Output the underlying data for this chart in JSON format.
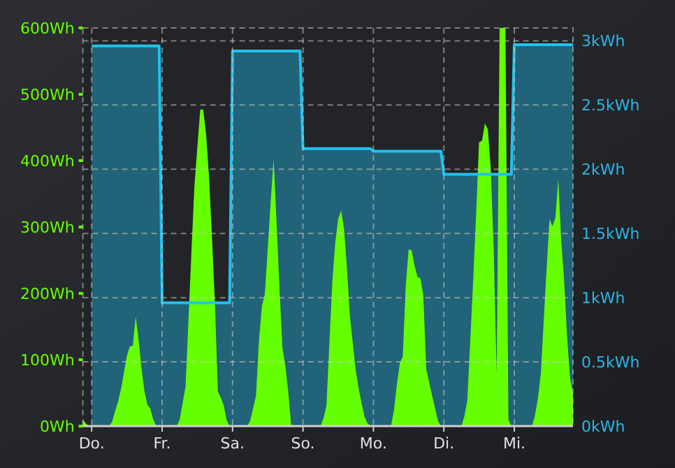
{
  "chart_data": {
    "type": "area",
    "categories": [
      null,
      null,
      null,
      "Do.",
      null,
      null,
      null,
      null,
      null,
      null,
      null,
      null,
      null,
      null,
      null,
      null,
      null,
      null,
      null,
      null,
      null,
      null,
      null,
      null,
      null,
      null,
      null,
      "Fr.",
      null,
      null,
      null,
      null,
      null,
      null,
      null,
      null,
      null,
      null,
      null,
      null,
      null,
      null,
      null,
      null,
      null,
      null,
      null,
      null,
      null,
      null,
      null,
      "Sa.",
      null,
      null,
      null,
      null,
      null,
      null,
      null,
      null,
      null,
      null,
      null,
      null,
      null,
      null,
      null,
      null,
      null,
      null,
      null,
      null,
      null,
      null,
      null,
      "So.",
      null,
      null,
      null,
      null,
      null,
      null,
      null,
      null,
      null,
      null,
      null,
      null,
      null,
      null,
      null,
      null,
      null,
      null,
      null,
      null,
      null,
      null,
      null,
      "Mo.",
      null,
      null,
      null,
      null,
      null,
      null,
      null,
      null,
      null,
      null,
      null,
      null,
      null,
      null,
      null,
      null,
      null,
      null,
      null,
      null,
      null,
      null,
      null,
      "Di.",
      null,
      null,
      null,
      null,
      null,
      null,
      null,
      null,
      null,
      null,
      null,
      null,
      null,
      null,
      null,
      null,
      null,
      null,
      null,
      null,
      null,
      null,
      null,
      "Mi.",
      null,
      null,
      null,
      null,
      null,
      null,
      null,
      null,
      null,
      null,
      null,
      null,
      null,
      null,
      null,
      null,
      null,
      null,
      null,
      null
    ],
    "ylim": [
      0,
      600
    ],
    "yticks": [
      {
        "value": 0,
        "label": "0Wh"
      },
      {
        "value": 100,
        "label": "100Wh"
      },
      {
        "value": 200,
        "label": "200Wh"
      },
      {
        "value": 300,
        "label": "300Wh"
      },
      {
        "value": 400,
        "label": "400Wh"
      },
      {
        "value": 500,
        "label": "500Wh"
      },
      {
        "value": 600,
        "label": "600Wh"
      }
    ],
    "y2lim": [
      0,
      3.1
    ],
    "y2ticks": [
      {
        "value": 0,
        "label": "0kWh"
      },
      {
        "value": 0.5,
        "label": "0.5kWh"
      },
      {
        "value": 1,
        "label": "1kWh"
      },
      {
        "value": 1.5,
        "label": "1.5kWh"
      },
      {
        "value": 2,
        "label": "2kWh"
      },
      {
        "value": 2.5,
        "label": "2.5kWh"
      },
      {
        "value": 3,
        "label": "3kWh"
      }
    ],
    "grid": true,
    "series": [
      {
        "type": "area",
        "axis": "y2",
        "color": "#1ec3f0",
        "values": [
          null,
          null,
          null,
          2.96,
          2.96,
          2.96,
          2.96,
          2.96,
          2.96,
          2.96,
          2.96,
          2.96,
          2.96,
          2.96,
          2.96,
          2.96,
          2.96,
          2.96,
          2.96,
          2.96,
          2.96,
          2.96,
          2.96,
          2.96,
          2.96,
          2.96,
          2.96,
          0.96,
          0.96,
          0.96,
          0.96,
          0.96,
          0.96,
          0.96,
          0.96,
          0.96,
          0.96,
          0.96,
          0.96,
          0.96,
          0.96,
          0.96,
          0.96,
          0.96,
          0.96,
          0.96,
          0.96,
          0.96,
          0.96,
          0.96,
          0.96,
          2.92,
          2.92,
          2.92,
          2.92,
          2.92,
          2.92,
          2.92,
          2.92,
          2.92,
          2.92,
          2.92,
          2.92,
          2.92,
          2.92,
          2.92,
          2.92,
          2.92,
          2.92,
          2.92,
          2.92,
          2.92,
          2.92,
          2.92,
          2.92,
          2.16,
          2.16,
          2.16,
          2.16,
          2.16,
          2.16,
          2.16,
          2.16,
          2.16,
          2.16,
          2.16,
          2.16,
          2.16,
          2.16,
          2.16,
          2.16,
          2.16,
          2.16,
          2.16,
          2.16,
          2.16,
          2.16,
          2.16,
          2.16,
          2.14,
          2.14,
          2.14,
          2.14,
          2.14,
          2.14,
          2.14,
          2.14,
          2.14,
          2.14,
          2.14,
          2.14,
          2.14,
          2.14,
          2.14,
          2.14,
          2.14,
          2.14,
          2.14,
          2.14,
          2.14,
          2.14,
          2.14,
          2.14,
          1.96,
          1.96,
          1.96,
          1.96,
          1.96,
          1.96,
          1.96,
          1.96,
          1.96,
          1.96,
          1.96,
          1.96,
          1.96,
          1.96,
          1.96,
          1.96,
          1.96,
          1.96,
          1.96,
          1.96,
          1.96,
          1.96,
          1.96,
          1.96,
          2.97,
          2.97,
          2.97,
          2.97,
          2.97,
          2.97,
          2.97,
          2.97,
          2.97,
          2.97,
          2.97,
          2.97,
          2.97,
          2.97,
          2.97,
          2.97,
          2.97,
          2.97,
          2.97,
          2.97,
          2.97
        ]
      },
      {
        "color": "#66ff00",
        "values": [
          10,
          4,
          0,
          0,
          0,
          0,
          0,
          0,
          0,
          0,
          7,
          23,
          37,
          56,
          81,
          106,
          120,
          121,
          165,
          130,
          86,
          52,
          32,
          26,
          10,
          0,
          0,
          0,
          0,
          0,
          0,
          0,
          0,
          10,
          35,
          60,
          162,
          264,
          361,
          420,
          477,
          477,
          439,
          375,
          283,
          185,
          52,
          43,
          31,
          9,
          0,
          0,
          0,
          0,
          0,
          0,
          0,
          8,
          27,
          46,
          129,
          181,
          199,
          268,
          339,
          402,
          308,
          207,
          118,
          91,
          51,
          0,
          0,
          0,
          0,
          0,
          0,
          0,
          0,
          0,
          0,
          0,
          12,
          31,
          125,
          218,
          277,
          312,
          325,
          297,
          237,
          165,
          124,
          83,
          56,
          34,
          14,
          4,
          0,
          0,
          0,
          0,
          0,
          0,
          0,
          0,
          24,
          63,
          95,
          105,
          210,
          266,
          265,
          242,
          225,
          223,
          197,
          86,
          66,
          46,
          27,
          8,
          0,
          0,
          0,
          0,
          0,
          0,
          0,
          0,
          15,
          39,
          129,
          220,
          320,
          428,
          430,
          456,
          447,
          387,
          265,
          78,
          600,
          600,
          600,
          10,
          0,
          0,
          0,
          0,
          0,
          0,
          0,
          0,
          15,
          40,
          77,
          156,
          236,
          312,
          301,
          314,
          372,
          279,
          218,
          134,
          73,
          49
        ]
      }
    ]
  }
}
